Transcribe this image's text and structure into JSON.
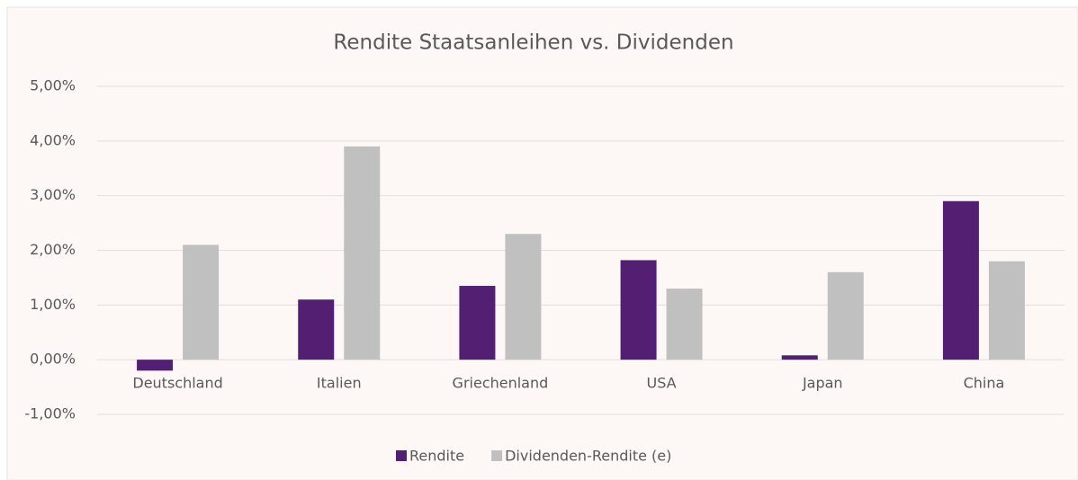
{
  "chart_data": {
    "type": "bar",
    "title": "Rendite Staatsanleihen vs. Dividenden",
    "categories": [
      "Deutschland",
      "Italien",
      "Griechenland",
      "USA",
      "Japan",
      "China"
    ],
    "series": [
      {
        "name": "Rendite",
        "color": "#531f73",
        "values": [
          -0.2,
          1.1,
          1.35,
          1.82,
          0.08,
          2.9
        ]
      },
      {
        "name": "Dividenden-Rendite (e)",
        "color": "#c0c0c0",
        "values": [
          2.1,
          3.9,
          2.3,
          1.3,
          1.6,
          1.8
        ]
      }
    ],
    "ylim": [
      -1,
      5
    ],
    "yticks": [
      {
        "value": -1,
        "label": "-1,00%"
      },
      {
        "value": 0,
        "label": "0,00%"
      },
      {
        "value": 1,
        "label": "1,00%"
      },
      {
        "value": 2,
        "label": "2,00%"
      },
      {
        "value": 3,
        "label": "3,00%"
      },
      {
        "value": 4,
        "label": "4,00%"
      },
      {
        "value": 5,
        "label": "5,00%"
      }
    ],
    "grid": true,
    "legend": "bottom"
  }
}
